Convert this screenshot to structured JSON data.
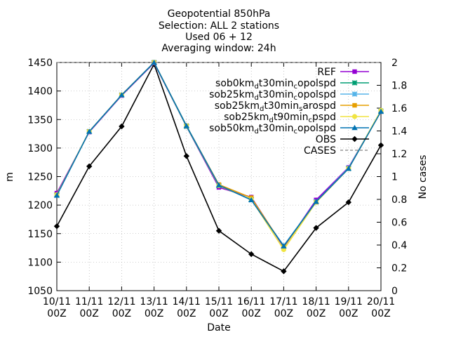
{
  "chart_data": {
    "type": "line",
    "title_lines": [
      "Geopotential 850hPa",
      "Selection: ALL       2 stations",
      "Used 06 + 12",
      "Averaging window: 24h"
    ],
    "xlabel": "Date",
    "ylabel": "m",
    "y2label": "No cases",
    "ylim": [
      1050,
      1450
    ],
    "yticks": [
      1050,
      1100,
      1150,
      1200,
      1250,
      1300,
      1350,
      1400,
      1450
    ],
    "y2lim": [
      0,
      2
    ],
    "y2ticks": [
      "0",
      "0.2",
      "0.4",
      "0.6",
      "0.8",
      "1",
      "1.2",
      "1.4",
      "1.6",
      "1.8",
      "2"
    ],
    "categories": [
      [
        "10/11",
        "00Z"
      ],
      [
        "11/11",
        "00Z"
      ],
      [
        "12/11",
        "00Z"
      ],
      [
        "13/11",
        "00Z"
      ],
      [
        "14/11",
        "00Z"
      ],
      [
        "15/11",
        "00Z"
      ],
      [
        "16/11",
        "00Z"
      ],
      [
        "17/11",
        "00Z"
      ],
      [
        "18/11",
        "00Z"
      ],
      [
        "19/11",
        "00Z"
      ],
      [
        "20/11",
        "00Z"
      ]
    ],
    "legend_position": "top-right",
    "series": [
      {
        "name": "REF",
        "color": "#9400d3",
        "marker": "square",
        "values": [
          1221,
          1328,
          1392,
          1449,
          1338,
          1231,
          1214,
          1126,
          1209,
          1266,
          1364
        ]
      },
      {
        "name": "sob0km_d t30min_c opolspd",
        "base": "sob0km",
        "parts": [
          [
            "d",
            "t30min"
          ],
          [
            "c",
            "opolspd"
          ]
        ],
        "color": "#009e73",
        "marker": "x",
        "values": [
          1218,
          1329,
          1393,
          1450,
          1338,
          1234,
          1210,
          1128,
          1206,
          1264,
          1365
        ]
      },
      {
        "name": "sob25km_d t30min_c opolspd",
        "base": "sob25km",
        "parts": [
          [
            "d",
            "t30min"
          ],
          [
            "c",
            "opolspd"
          ]
        ],
        "color": "#56b4e9",
        "marker": "asterisk",
        "values": [
          1217,
          1329,
          1393,
          1450,
          1339,
          1235,
          1209,
          1129,
          1206,
          1265,
          1365
        ]
      },
      {
        "name": "sob25km_d t30min_s arospd",
        "base": "sob25km",
        "parts": [
          [
            "d",
            "t30min"
          ],
          [
            "s",
            "arospd"
          ]
        ],
        "color": "#e69f00",
        "marker": "square",
        "values": [
          1218,
          1329,
          1393,
          1450,
          1339,
          1236,
          1213,
          1127,
          1205,
          1264,
          1364
        ]
      },
      {
        "name": "sob25km_d t90min_c pspd",
        "base": "sob25km",
        "parts": [
          [
            "d",
            "t90min"
          ],
          [
            "c",
            "pspd"
          ]
        ],
        "color": "#f0e442",
        "marker": "circle",
        "values": [
          1218,
          1329,
          1393,
          1450,
          1339,
          1234,
          1210,
          1122,
          1205,
          1264,
          1366
        ]
      },
      {
        "name": "sob50km_d t30min_c opolspd",
        "base": "sob50km",
        "parts": [
          [
            "d",
            "t30min"
          ],
          [
            "c",
            "opolspd"
          ]
        ],
        "color": "#0072b2",
        "marker": "triangle",
        "values": [
          1217,
          1329,
          1393,
          1450,
          1339,
          1235,
          1209,
          1128,
          1206,
          1264,
          1364
        ]
      },
      {
        "name": "OBS",
        "color": "#000000",
        "marker": "diamond",
        "values": [
          1163,
          1268,
          1338,
          1447,
          1286,
          1155,
          1114,
          1084,
          1160,
          1205,
          1305
        ]
      }
    ],
    "cases": {
      "name": "CASES",
      "color": "#808080",
      "dashed": true,
      "values": [
        2,
        2,
        2,
        2,
        2,
        2,
        2,
        2,
        2,
        2,
        2
      ]
    }
  }
}
